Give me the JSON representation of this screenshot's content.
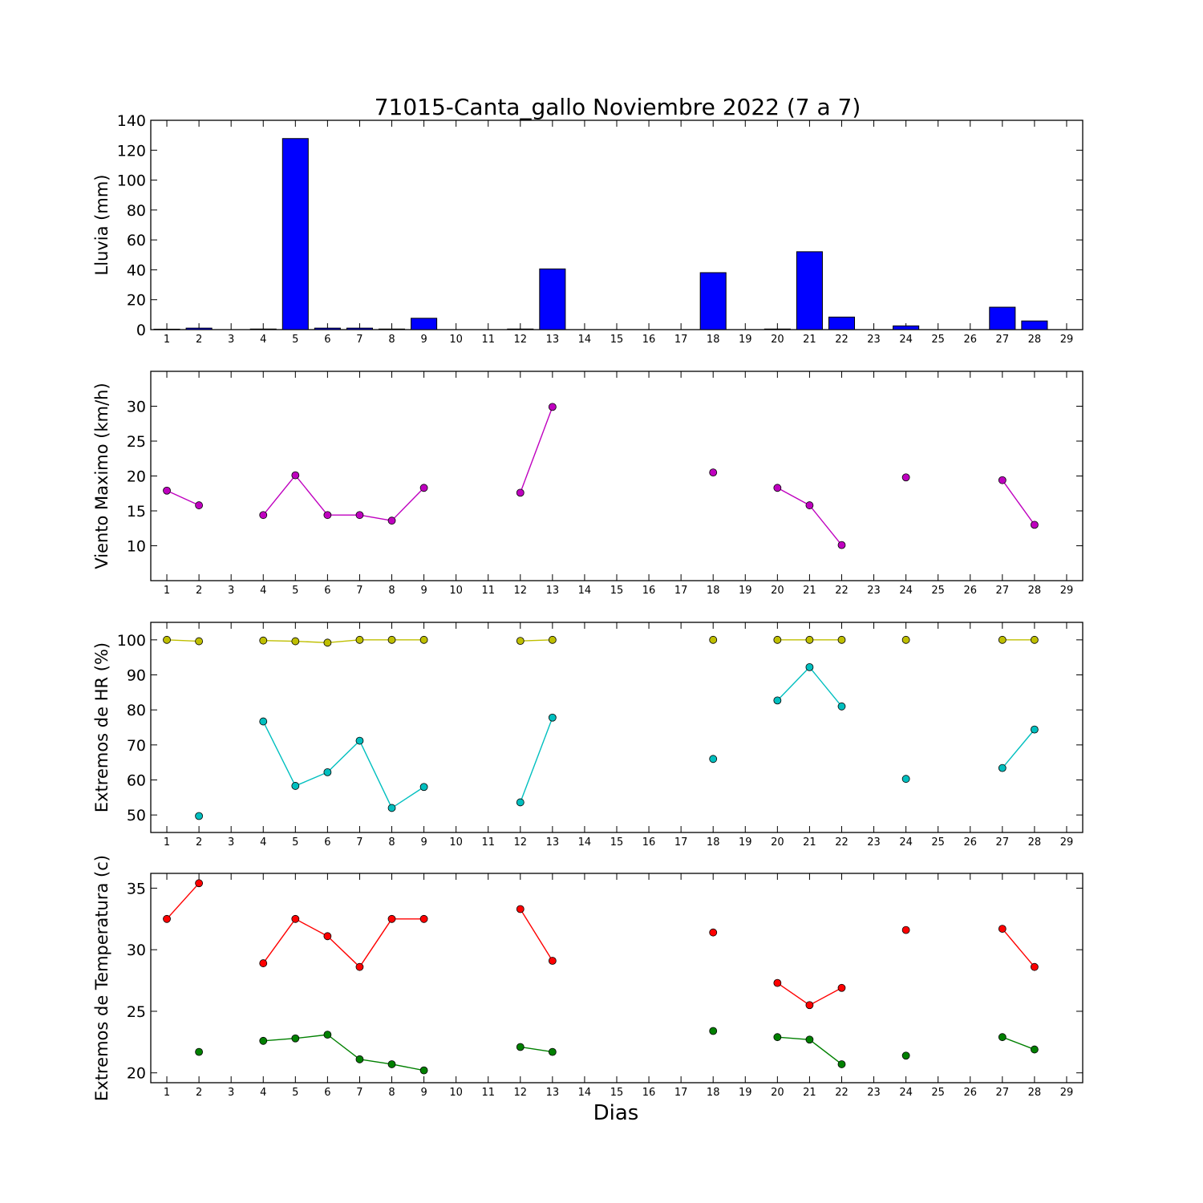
{
  "figure": {
    "title": "71015-Canta_gallo Noviembre 2022  (7 a 7)",
    "xlabel": "Dias"
  },
  "chart_data": [
    {
      "type": "bar",
      "ylabel": "Lluvia (mm)",
      "ylim": [
        0,
        140
      ],
      "yticks": [
        0,
        20,
        40,
        60,
        80,
        100,
        120,
        140
      ],
      "xlim": [
        0.5,
        29.5
      ],
      "xticks": [
        1,
        2,
        3,
        4,
        5,
        6,
        7,
        8,
        9,
        10,
        11,
        12,
        13,
        14,
        15,
        16,
        17,
        18,
        19,
        20,
        21,
        22,
        23,
        24,
        25,
        26,
        27,
        28,
        29
      ],
      "color": "#0000ff",
      "series": [
        {
          "x": [
            1,
            2,
            4,
            5,
            6,
            7,
            8,
            9,
            12,
            13,
            18,
            20,
            21,
            22,
            24,
            27,
            28
          ],
          "values": [
            0.3,
            1.0,
            0.4,
            127.8,
            1.0,
            1.0,
            0.4,
            7.6,
            0.4,
            40.6,
            38.1,
            0.4,
            52.1,
            8.4,
            2.5,
            15.0,
            5.8
          ]
        }
      ]
    },
    {
      "type": "line",
      "ylabel": "Viento Maximo (km/h)",
      "ylim": [
        5,
        35
      ],
      "yticks": [
        10,
        15,
        20,
        25,
        30
      ],
      "xlim": [
        0.5,
        29.5
      ],
      "xticks": [
        1,
        2,
        3,
        4,
        5,
        6,
        7,
        8,
        9,
        10,
        11,
        12,
        13,
        14,
        15,
        16,
        17,
        18,
        19,
        20,
        21,
        22,
        23,
        24,
        25,
        26,
        27,
        28,
        29
      ],
      "series": [
        {
          "color": "#bf00bf",
          "x": [
            1,
            2,
            4,
            5,
            6,
            7,
            8,
            9,
            12,
            13,
            18,
            20,
            21,
            22,
            24,
            27,
            28
          ],
          "values": [
            17.9,
            15.8,
            14.4,
            20.1,
            14.4,
            14.4,
            13.6,
            18.3,
            17.6,
            29.9,
            20.5,
            18.3,
            15.8,
            10.1,
            19.8,
            19.4,
            13.0
          ]
        }
      ]
    },
    {
      "type": "line",
      "ylabel": "Extremos de HR (%)",
      "ylim": [
        45,
        105
      ],
      "yticks": [
        50,
        60,
        70,
        80,
        90,
        100
      ],
      "xlim": [
        0.5,
        29.5
      ],
      "xticks": [
        1,
        2,
        3,
        4,
        5,
        6,
        7,
        8,
        9,
        10,
        11,
        12,
        13,
        14,
        15,
        16,
        17,
        18,
        19,
        20,
        21,
        22,
        23,
        24,
        25,
        26,
        27,
        28,
        29
      ],
      "series": [
        {
          "color": "#bfbf00",
          "x": [
            1,
            2,
            4,
            5,
            6,
            7,
            8,
            9,
            12,
            13,
            18,
            20,
            21,
            22,
            24,
            27,
            28
          ],
          "values": [
            100,
            99.6,
            99.8,
            99.6,
            99.2,
            100,
            100,
            100,
            99.7,
            100,
            100,
            100,
            100,
            100,
            100,
            100,
            100
          ]
        },
        {
          "color": "#00bfbf",
          "x": [
            2,
            4,
            5,
            6,
            7,
            8,
            9,
            12,
            13,
            18,
            20,
            21,
            22,
            24,
            27,
            28
          ],
          "values": [
            49.7,
            76.7,
            58.3,
            62.2,
            71.2,
            52.0,
            58.0,
            53.6,
            77.8,
            66.0,
            82.7,
            92.2,
            81.0,
            60.3,
            63.4,
            74.4
          ]
        }
      ]
    },
    {
      "type": "line",
      "ylabel": "Extremos de Temperatura (c)",
      "ylim": [
        19.2,
        36.2
      ],
      "yticks": [
        20,
        25,
        30,
        35
      ],
      "xlim": [
        0.5,
        29.5
      ],
      "xticks": [
        1,
        2,
        3,
        4,
        5,
        6,
        7,
        8,
        9,
        10,
        11,
        12,
        13,
        14,
        15,
        16,
        17,
        18,
        19,
        20,
        21,
        22,
        23,
        24,
        25,
        26,
        27,
        28,
        29
      ],
      "series": [
        {
          "color": "#ff0000",
          "x": [
            1,
            2,
            4,
            5,
            6,
            7,
            8,
            9,
            12,
            13,
            18,
            20,
            21,
            22,
            24,
            27,
            28
          ],
          "values": [
            32.5,
            35.4,
            28.9,
            32.5,
            31.1,
            28.6,
            32.5,
            32.5,
            33.3,
            29.1,
            31.4,
            27.3,
            25.5,
            26.9,
            31.6,
            31.7,
            28.6
          ]
        },
        {
          "color": "#008000",
          "x": [
            2,
            4,
            5,
            6,
            7,
            8,
            9,
            12,
            13,
            18,
            20,
            21,
            22,
            24,
            27,
            28
          ],
          "values": [
            21.7,
            22.6,
            22.8,
            23.1,
            21.1,
            20.7,
            20.2,
            22.1,
            21.7,
            23.4,
            22.9,
            22.7,
            20.7,
            21.4,
            22.9,
            21.9
          ]
        }
      ]
    }
  ]
}
